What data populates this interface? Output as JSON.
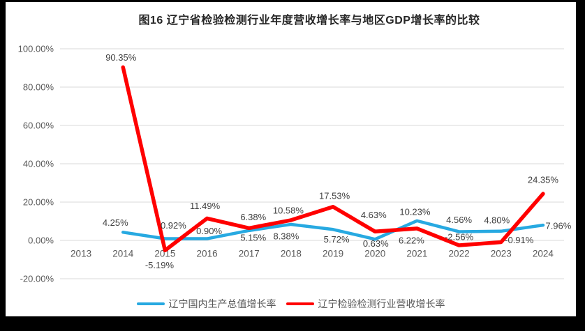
{
  "title": "图16 辽宁省检验检测行业年度营收增长率与地区GDP增长率的比较",
  "colors": {
    "frame_background": "#000000",
    "panel_background": "#ffffff",
    "gridline": "#d9d9d9",
    "axis_text": "#595959",
    "data_label_text": "#404040",
    "title_text": "#262626",
    "series_blue": "#27a9e1",
    "series_red": "#ff0000"
  },
  "chart_data": {
    "type": "line",
    "title": "图16 辽宁省检验检测行业年度营收增长率与地区GDP增长率的比较",
    "categories": [
      "2013",
      "2014",
      "2015",
      "2016",
      "2017",
      "2018",
      "2019",
      "2020",
      "2021",
      "2022",
      "2023",
      "2024"
    ],
    "xlabel": "",
    "ylabel": "",
    "ylim": [
      -20,
      100
    ],
    "y_step": 20,
    "y_tick_labels": [
      "100.00%",
      "80.00%",
      "60.00%",
      "40.00%",
      "20.00%",
      "0.00%",
      "-20.00%"
    ],
    "grid": true,
    "legend_position": "bottom",
    "series": [
      {
        "name": "辽宁国内生产总值增长率",
        "color": "#27a9e1",
        "values": [
          null,
          4.25,
          0.92,
          0.9,
          5.15,
          8.38,
          5.72,
          0.63,
          10.23,
          4.56,
          4.8,
          7.96
        ],
        "data_labels": [
          "",
          "4.25%",
          "0.92%",
          "0.90%",
          "5.15%",
          "8.38%",
          "5.72%",
          "0.63%",
          "10.23%",
          "4.56%",
          "4.80%",
          "7.96%"
        ],
        "label_offsets": [
          [
            0,
            0
          ],
          [
            -11,
            -14
          ],
          [
            12,
            -19
          ],
          [
            3,
            -11
          ],
          [
            6,
            10
          ],
          [
            -7,
            17
          ],
          [
            5,
            14
          ],
          [
            1,
            6
          ],
          [
            -3,
            -13
          ],
          [
            0,
            -17
          ],
          [
            -6,
            -16
          ],
          [
            22,
            1
          ]
        ]
      },
      {
        "name": "辽宁检验检测行业营收增长率",
        "color": "#ff0000",
        "values": [
          null,
          90.35,
          -5.19,
          11.49,
          6.38,
          10.58,
          17.53,
          4.63,
          6.22,
          -2.56,
          -0.91,
          24.35
        ],
        "data_labels": [
          "",
          "90.35%",
          "-5.19%",
          "11.49%",
          "6.38%",
          "10.58%",
          "17.53%",
          "4.63%",
          "6.22%",
          "-2.56%",
          "-0.91%",
          "24.35%"
        ],
        "label_offsets": [
          [
            0,
            0
          ],
          [
            -3,
            -14
          ],
          [
            -8,
            21
          ],
          [
            -3,
            -18
          ],
          [
            6,
            -16
          ],
          [
            -4,
            -14
          ],
          [
            2,
            -16
          ],
          [
            -2,
            -24
          ],
          [
            -8,
            17
          ],
          [
            0,
            -12
          ],
          [
            26,
            -3
          ],
          [
            0,
            -20
          ]
        ]
      }
    ]
  }
}
